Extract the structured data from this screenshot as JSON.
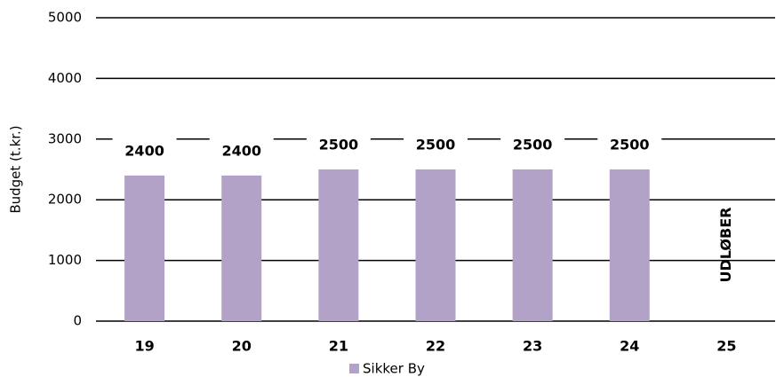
{
  "chart_data": {
    "type": "bar",
    "y_label": "Budget (t.kr.)",
    "categories": [
      "19",
      "20",
      "21",
      "22",
      "23",
      "24",
      "25"
    ],
    "series": [
      {
        "name": "Sikker By",
        "color": "#b3a2c7",
        "values": [
          2400,
          2400,
          2500,
          2500,
          2500,
          2500,
          null
        ]
      }
    ],
    "annotation": "UDLØBER",
    "ylim": [
      0,
      5000
    ],
    "yticks": [
      0,
      1000,
      2000,
      3000,
      4000,
      5000
    ],
    "grid": true,
    "legend": "bottom"
  }
}
